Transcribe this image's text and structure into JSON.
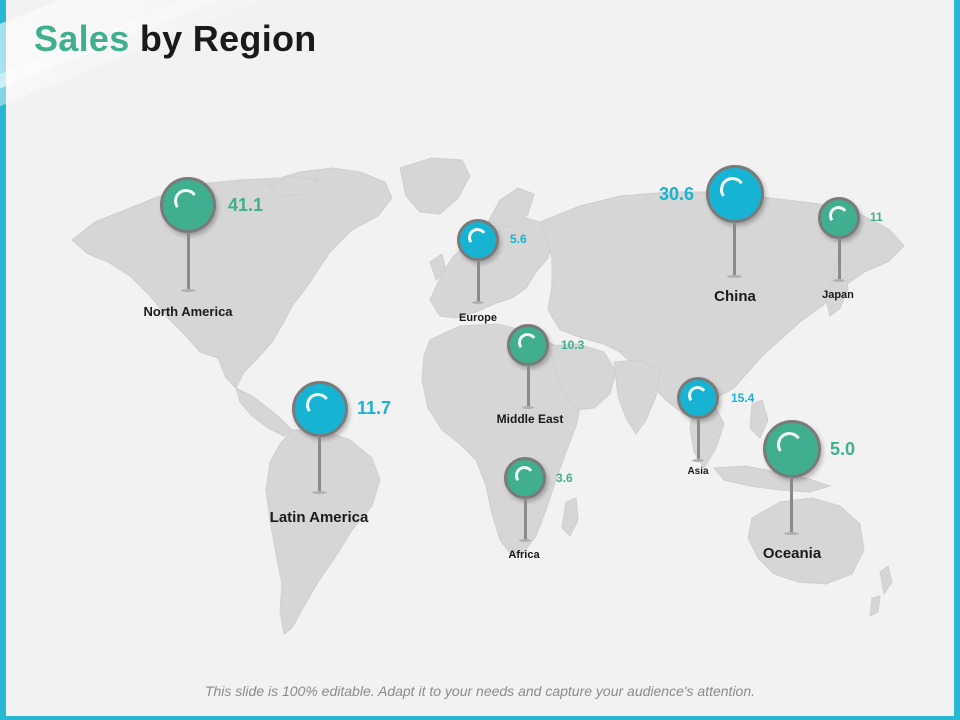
{
  "title": {
    "accent": "Sales",
    "rest": " by Region"
  },
  "colors": {
    "green": "#3faf8f",
    "blue": "#16b4d2",
    "frame": "#29b8d4",
    "land": "#d6d6d6"
  },
  "regions": [
    {
      "id": "north-america",
      "name": "North America",
      "value": "41.1",
      "color": "green"
    },
    {
      "id": "latin-america",
      "name": "Latin America",
      "value": "11.7",
      "color": "blue"
    },
    {
      "id": "europe",
      "name": "Europe",
      "value": "5.6",
      "color": "blue"
    },
    {
      "id": "middle-east",
      "name": "Middle East",
      "value": "10.3",
      "color": "green"
    },
    {
      "id": "africa",
      "name": "Africa",
      "value": "3.6",
      "color": "green"
    },
    {
      "id": "china",
      "name": "China",
      "value": "30.6",
      "color": "blue"
    },
    {
      "id": "japan",
      "name": "Japan",
      "value": "11",
      "color": "green"
    },
    {
      "id": "asia",
      "name": "Asia",
      "value": "15.4",
      "color": "blue"
    },
    {
      "id": "oceania",
      "name": "Oceania",
      "value": "5.0",
      "color": "green"
    }
  ],
  "footer": "This slide is 100% editable. Adapt it to your needs and capture your audience's attention."
}
